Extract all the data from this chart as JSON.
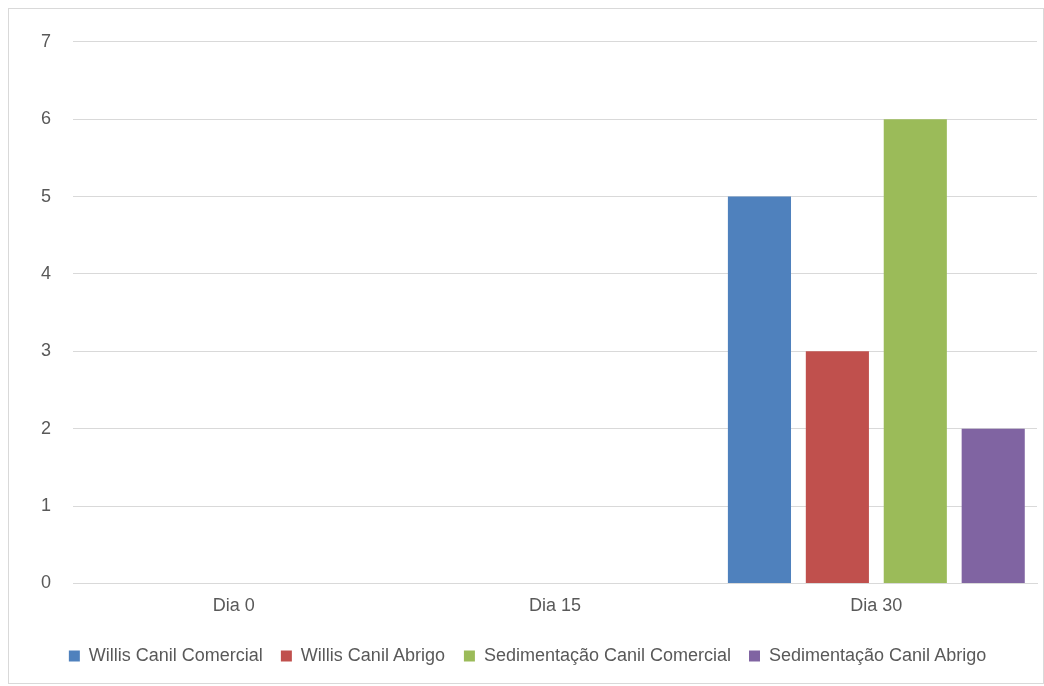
{
  "chart_data": {
    "type": "bar",
    "categories": [
      "Dia 0",
      "Dia 15",
      "Dia 30"
    ],
    "series": [
      {
        "name": "Willis Canil Comercial",
        "color": "#4f81bd",
        "values": [
          0,
          0,
          5
        ]
      },
      {
        "name": "Willis Canil Abrigo",
        "color": "#c0504d",
        "values": [
          0,
          0,
          3
        ]
      },
      {
        "name": "Sedimentação Canil Comercial",
        "color": "#9bbb59",
        "values": [
          0,
          0,
          6
        ]
      },
      {
        "name": "Sedimentação Canil Abrigo",
        "color": "#8064a2",
        "values": [
          0,
          0,
          2
        ]
      }
    ],
    "ylim": [
      0,
      7
    ],
    "yticks": [
      0,
      1,
      2,
      3,
      4,
      5,
      6,
      7
    ],
    "grid": "y",
    "legend": "bottom"
  }
}
